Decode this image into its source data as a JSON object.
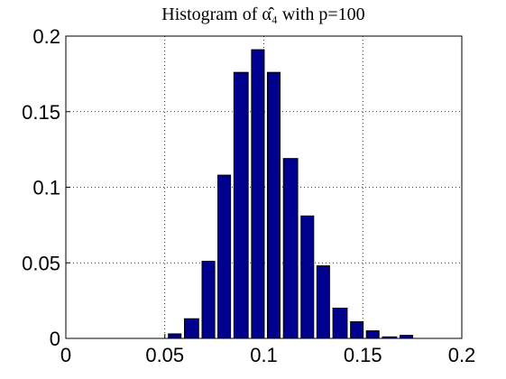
{
  "chart_data": {
    "type": "histogram",
    "title": "Histogram of α̂₄ with p=100",
    "bins": [
      0.051,
      0.059,
      0.068,
      0.076,
      0.084,
      0.093,
      0.101,
      0.109,
      0.118,
      0.126,
      0.134,
      0.143,
      0.151,
      0.159,
      0.168,
      0.176
    ],
    "values": [
      0.003,
      0.013,
      0.051,
      0.108,
      0.176,
      0.191,
      0.176,
      0.119,
      0.081,
      0.048,
      0.02,
      0.011,
      0.005,
      0.001,
      0.002
    ],
    "color": "#00008f",
    "xlim": [
      0,
      0.2
    ],
    "xticks": [
      0,
      0.05,
      0.1,
      0.15,
      0.2
    ],
    "ylim": [
      0,
      0.2
    ],
    "yticks": [
      0,
      0.05,
      0.1,
      0.15,
      0.2
    ],
    "grid": true
  }
}
